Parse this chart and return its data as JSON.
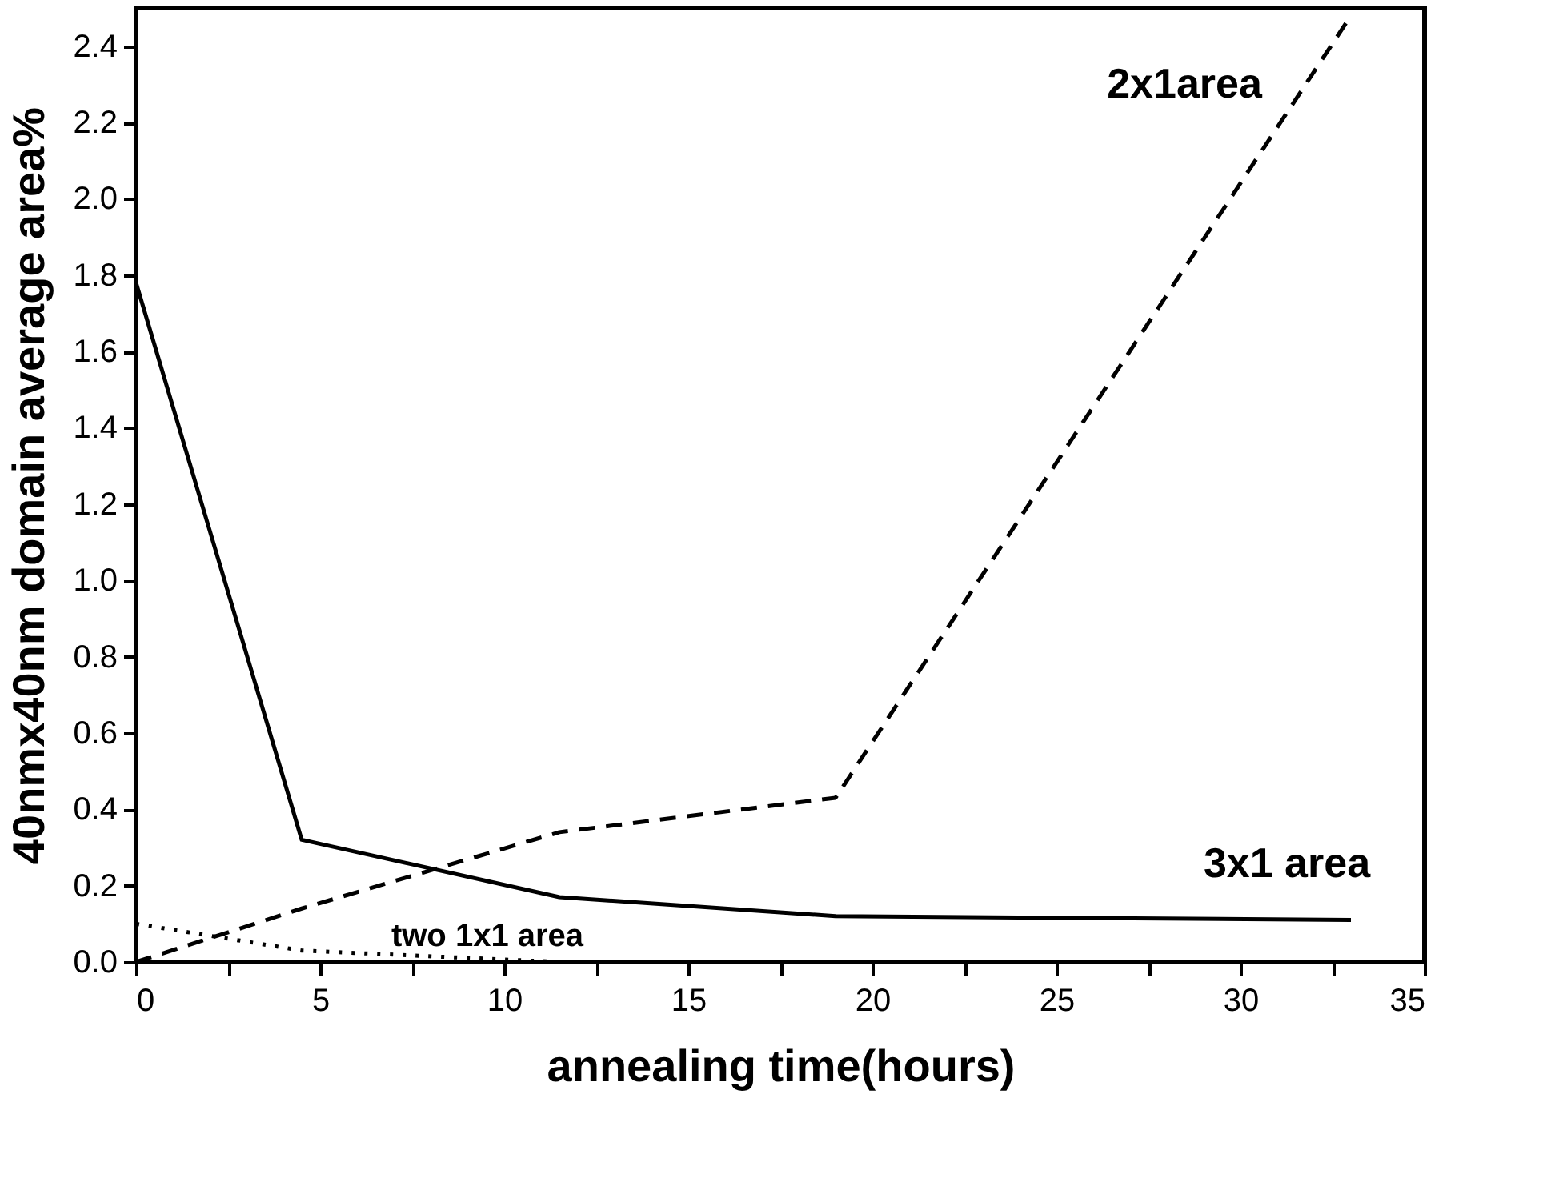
{
  "chart_data": {
    "type": "line",
    "xlabel": "annealing time(hours)",
    "ylabel": "40nmx40nm domain average area%",
    "x": [
      0,
      4.5,
      11.5,
      19,
      33
    ],
    "series": [
      {
        "name": "3x1 area",
        "color": "#000000",
        "line_style": "solid",
        "values": [
          1.78,
          0.32,
          0.17,
          0.12,
          0.11
        ]
      },
      {
        "name": "2x1area",
        "color": "#000000",
        "line_style": "dashed",
        "values": [
          0.0,
          0.14,
          0.34,
          0.43,
          2.48
        ]
      },
      {
        "name": "two 1x1 area",
        "color": "#000000",
        "line_style": "dotted",
        "x": [
          0,
          4.5,
          11.5
        ],
        "values": [
          0.1,
          0.03,
          0.0
        ]
      }
    ],
    "xlim": [
      0,
      35
    ],
    "xticks": [
      0,
      {
        "value": 2.5,
        "label": null
      },
      5,
      {
        "value": 7.5,
        "label": null
      },
      10,
      {
        "value": 12.5,
        "label": null
      },
      15,
      {
        "value": 17.5,
        "label": null
      },
      20,
      {
        "value": 22.5,
        "label": null
      },
      25,
      {
        "value": 27.5,
        "label": null
      },
      30,
      {
        "value": 32.5,
        "label": null
      },
      35
    ],
    "ylim": [
      0,
      2.5
    ],
    "yticks": [
      {
        "value": 0,
        "label": "0.0"
      },
      {
        "value": 0.2,
        "label": "0.2"
      },
      {
        "value": 0.4,
        "label": "0.4"
      },
      {
        "value": 0.6,
        "label": "0.6"
      },
      {
        "value": 0.8,
        "label": "0.8"
      },
      {
        "value": 1,
        "label": "1.0"
      },
      {
        "value": 1.2,
        "label": "1.2"
      },
      {
        "value": 1.4,
        "label": "1.4"
      },
      {
        "value": 1.6,
        "label": "1.6"
      },
      {
        "value": 1.8,
        "label": "1.8"
      },
      {
        "value": 2,
        "label": "2.0"
      },
      {
        "value": 2.2,
        "label": "2.2"
      },
      {
        "value": 2.4,
        "label": "2.4"
      }
    ],
    "grid": false,
    "marker": "none"
  }
}
